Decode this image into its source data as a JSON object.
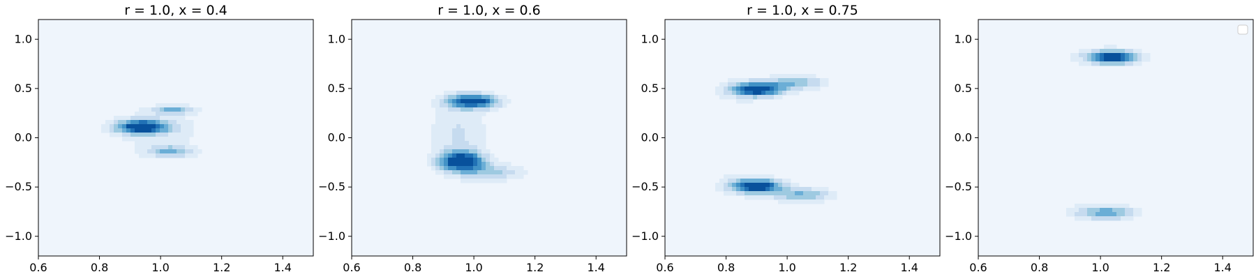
{
  "chart_data": [
    {
      "type": "kde-contour",
      "title": "r = 1.0, x = 0.4",
      "xlim": [
        0.6,
        1.5
      ],
      "ylim": [
        -1.2,
        1.2
      ],
      "xticks": [
        0.6,
        0.8,
        1.0,
        1.2,
        1.4
      ],
      "xtick_labels": [
        "0.6",
        "0.8",
        "1.0",
        "1.2",
        "1.4"
      ],
      "yticks": [
        1.0,
        0.5,
        0.0,
        -0.5,
        -1.0
      ],
      "ytick_labels": [
        "1.0",
        "0.5",
        "0.0",
        "−0.5",
        "−1.0"
      ],
      "legend": false,
      "background": {
        "x": [
          0.6,
          1.5
        ],
        "y": [
          -1.2,
          1.2
        ]
      },
      "modes": [
        {
          "x": 0.94,
          "y": 0.11,
          "sx": 0.06,
          "sy": 0.05,
          "peak": 1.0
        },
        {
          "x": 1.04,
          "y": 0.28,
          "sx": 0.05,
          "sy": 0.03,
          "peak": 0.45
        },
        {
          "x": 1.03,
          "y": -0.14,
          "sx": 0.05,
          "sy": 0.04,
          "peak": 0.45
        },
        {
          "x": 1.0,
          "y": 0.05,
          "sx": 0.14,
          "sy": 0.22,
          "peak": 0.15
        }
      ]
    },
    {
      "type": "kde-contour",
      "title": "r = 1.0, x = 0.6",
      "xlim": [
        0.6,
        1.5
      ],
      "ylim": [
        -1.2,
        1.2
      ],
      "xticks": [
        0.6,
        0.8,
        1.0,
        1.2,
        1.4
      ],
      "xtick_labels": [
        "0.6",
        "0.8",
        "1.0",
        "1.2",
        "1.4"
      ],
      "yticks": [
        1.0,
        0.5,
        0.0,
        -0.5,
        -1.0
      ],
      "ytick_labels": [
        "1.0",
        "0.5",
        "0.0",
        "−0.5",
        "−1.0"
      ],
      "legend": false,
      "background": {
        "x": [
          0.6,
          1.5
        ],
        "y": [
          -1.2,
          1.2
        ]
      },
      "modes": [
        {
          "x": 1.0,
          "y": 0.37,
          "sx": 0.06,
          "sy": 0.05,
          "peak": 0.9
        },
        {
          "x": 0.96,
          "y": -0.24,
          "sx": 0.05,
          "sy": 0.07,
          "peak": 1.0
        },
        {
          "x": 0.95,
          "y": 0.05,
          "sx": 0.07,
          "sy": 0.3,
          "peak": 0.25
        },
        {
          "x": 1.07,
          "y": -0.35,
          "sx": 0.07,
          "sy": 0.06,
          "peak": 0.35
        }
      ]
    },
    {
      "type": "kde-contour",
      "title": "r = 1.0, x = 0.75",
      "xlim": [
        0.6,
        1.5
      ],
      "ylim": [
        -1.2,
        1.2
      ],
      "xticks": [
        0.6,
        0.8,
        1.0,
        1.2,
        1.4
      ],
      "xtick_labels": [
        "0.6",
        "0.8",
        "1.0",
        "1.2",
        "1.4"
      ],
      "yticks": [
        1.0,
        0.5,
        0.0,
        -0.5,
        -1.0
      ],
      "ytick_labels": [
        "1.0",
        "0.5",
        "0.0",
        "−0.5",
        "−1.0"
      ],
      "legend": false,
      "background": {
        "x": [
          0.6,
          1.5
        ],
        "y": [
          -1.2,
          1.2
        ]
      },
      "modes": [
        {
          "x": 0.9,
          "y": 0.49,
          "sx": 0.06,
          "sy": 0.05,
          "peak": 1.0
        },
        {
          "x": 1.03,
          "y": 0.56,
          "sx": 0.07,
          "sy": 0.05,
          "peak": 0.45
        },
        {
          "x": 0.9,
          "y": -0.49,
          "sx": 0.06,
          "sy": 0.05,
          "peak": 1.0
        },
        {
          "x": 1.05,
          "y": -0.58,
          "sx": 0.07,
          "sy": 0.05,
          "peak": 0.5
        },
        {
          "x": 0.82,
          "y": 0.0,
          "sx": 0.07,
          "sy": 0.5,
          "peak": 0.12
        }
      ]
    },
    {
      "type": "kde-contour",
      "title": "",
      "xlim": [
        0.6,
        1.5
      ],
      "ylim": [
        -1.2,
        1.2
      ],
      "xticks": [
        0.6,
        0.8,
        1.0,
        1.2,
        1.4
      ],
      "xtick_labels": [
        "0.6",
        "0.8",
        "1.0",
        "1.2",
        "1.4"
      ],
      "yticks": [
        1.0,
        0.5,
        0.0,
        -0.5,
        -1.0
      ],
      "ytick_labels": [
        "1.0",
        "0.5",
        "0.0",
        "−0.5",
        "−1.0"
      ],
      "legend": true,
      "legend_placement": "top-right",
      "background": {
        "x": [
          0.6,
          1.5
        ],
        "y": [
          -1.2,
          1.2
        ]
      },
      "modes": [
        {
          "x": 1.04,
          "y": 0.82,
          "sx": 0.06,
          "sy": 0.05,
          "peak": 1.0
        },
        {
          "x": 1.02,
          "y": -0.76,
          "sx": 0.07,
          "sy": 0.05,
          "peak": 0.55
        },
        {
          "x": 0.92,
          "y": 0.0,
          "sx": 0.08,
          "sy": 0.7,
          "peak": 0.08
        }
      ]
    }
  ],
  "colors": {
    "levels": [
      "#eff5fc",
      "#deebf7",
      "#c6dbef",
      "#9ecae1",
      "#6baed6",
      "#4292c6",
      "#2171b5",
      "#08519c"
    ],
    "frame": "#000000",
    "legend_border": "#cccccc"
  }
}
